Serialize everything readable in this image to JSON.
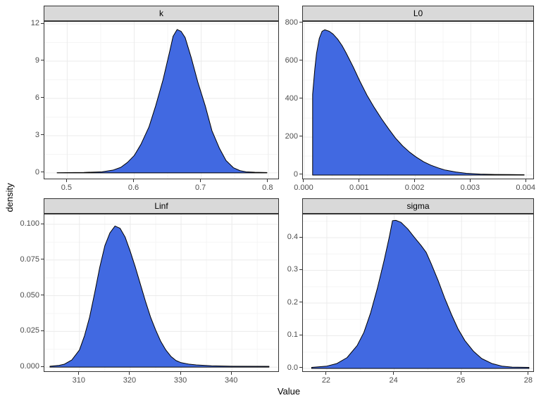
{
  "style": {
    "fill_color": "#4169E1",
    "line_color": "#000000",
    "panel_border": "#333333",
    "grid_major": "#EBEBEB",
    "grid_minor": "#F5F5F5",
    "strip_background": "#D9D9D9",
    "strip_text_color": "#000000",
    "tick_label_color": "#4D4D4D",
    "axis_title_color": "#000000"
  },
  "chart_data": {
    "type": "area",
    "subtype": "faceted-density",
    "title": "",
    "xlabel": "Value",
    "ylabel": "density",
    "grid": true,
    "legend": false,
    "facets": [
      {
        "name": "k",
        "xlim": [
          0.466,
          0.817
        ],
        "ylim": [
          -0.57,
          12.17
        ],
        "xticks": {
          "values": [
            0.5,
            0.6,
            0.7,
            0.8
          ],
          "labels": [
            "0.5",
            "0.6",
            "0.7",
            "0.8"
          ]
        },
        "yticks": {
          "values": [
            0,
            3,
            6,
            9,
            12
          ],
          "labels": [
            "0",
            "3",
            "6",
            "9",
            "12"
          ]
        },
        "curve": [
          [
            0.485,
            0.02
          ],
          [
            0.525,
            0.04
          ],
          [
            0.552,
            0.09
          ],
          [
            0.568,
            0.22
          ],
          [
            0.58,
            0.45
          ],
          [
            0.59,
            0.85
          ],
          [
            0.6,
            1.4
          ],
          [
            0.61,
            2.3
          ],
          [
            0.622,
            3.7
          ],
          [
            0.632,
            5.4
          ],
          [
            0.643,
            7.5
          ],
          [
            0.653,
            9.8
          ],
          [
            0.658,
            11.0
          ],
          [
            0.664,
            11.55
          ],
          [
            0.67,
            11.4
          ],
          [
            0.676,
            10.9
          ],
          [
            0.685,
            9.3
          ],
          [
            0.695,
            7.3
          ],
          [
            0.706,
            5.4
          ],
          [
            0.716,
            3.4
          ],
          [
            0.727,
            2.0
          ],
          [
            0.737,
            1.0
          ],
          [
            0.748,
            0.42
          ],
          [
            0.758,
            0.18
          ],
          [
            0.767,
            0.09
          ],
          [
            0.78,
            0.05
          ],
          [
            0.798,
            0.03
          ]
        ]
      },
      {
        "name": "L0",
        "xlim": [
          -2.5e-05,
          0.00415
        ],
        "ylim": [
          -26,
          807
        ],
        "xticks": {
          "values": [
            0,
            0.001,
            0.002,
            0.003,
            0.004
          ],
          "labels": [
            "0.000",
            "0.001",
            "0.002",
            "0.003",
            "0.004"
          ]
        },
        "yticks": {
          "values": [
            0,
            200,
            400,
            600,
            800
          ],
          "labels": [
            "0",
            "200",
            "400",
            "600",
            "800"
          ]
        },
        "curve": [
          [
            0.00015,
            0
          ],
          [
            0.00015,
            425
          ],
          [
            0.00019,
            560
          ],
          [
            0.00022,
            640
          ],
          [
            0.00027,
            720
          ],
          [
            0.00032,
            757
          ],
          [
            0.00037,
            765
          ],
          [
            0.00045,
            757
          ],
          [
            0.00052,
            742
          ],
          [
            0.0006,
            716
          ],
          [
            0.00068,
            682
          ],
          [
            0.00075,
            645
          ],
          [
            0.00088,
            570
          ],
          [
            0.001,
            495
          ],
          [
            0.00113,
            420
          ],
          [
            0.00126,
            356
          ],
          [
            0.00139,
            297
          ],
          [
            0.00152,
            243
          ],
          [
            0.00164,
            196
          ],
          [
            0.00177,
            154
          ],
          [
            0.0019,
            120
          ],
          [
            0.00201,
            96
          ],
          [
            0.00215,
            70
          ],
          [
            0.00228,
            52
          ],
          [
            0.00241,
            38
          ],
          [
            0.00253,
            27
          ],
          [
            0.00273,
            16
          ],
          [
            0.00292,
            9
          ],
          [
            0.00317,
            5
          ],
          [
            0.00343,
            3
          ],
          [
            0.0037,
            2.5
          ],
          [
            0.00396,
            2
          ]
        ]
      },
      {
        "name": "Linf",
        "xlim": [
          303.1,
          349.4
        ],
        "ylim": [
          -0.0039,
          0.1069
        ],
        "xticks": {
          "values": [
            310,
            320,
            330,
            340
          ],
          "labels": [
            "310",
            "320",
            "330",
            "340"
          ]
        },
        "yticks": {
          "values": [
            0,
            0.025,
            0.05,
            0.075,
            0.1
          ],
          "labels": [
            "0.000",
            "0.025",
            "0.050",
            "0.075",
            "0.100"
          ]
        },
        "curve": [
          [
            304.2,
            0.0006
          ],
          [
            306,
            0.0012
          ],
          [
            307,
            0.002
          ],
          [
            308.5,
            0.005
          ],
          [
            310,
            0.012
          ],
          [
            311,
            0.022
          ],
          [
            312,
            0.035
          ],
          [
            313,
            0.052
          ],
          [
            314,
            0.07
          ],
          [
            315,
            0.085
          ],
          [
            316,
            0.094
          ],
          [
            317,
            0.0988
          ],
          [
            318,
            0.0972
          ],
          [
            319,
            0.091
          ],
          [
            320,
            0.081
          ],
          [
            321,
            0.07
          ],
          [
            322,
            0.058
          ],
          [
            323,
            0.046
          ],
          [
            324,
            0.035
          ],
          [
            325,
            0.026
          ],
          [
            326,
            0.018
          ],
          [
            327,
            0.012
          ],
          [
            328,
            0.0075
          ],
          [
            329,
            0.0046
          ],
          [
            330,
            0.0031
          ],
          [
            331.5,
            0.0021
          ],
          [
            333,
            0.0015
          ],
          [
            336,
            0.0009
          ],
          [
            340,
            0.0006
          ],
          [
            347.3,
            0.0005
          ]
        ]
      },
      {
        "name": "sigma",
        "xlim": [
          21.29,
          28.17
        ],
        "ylim": [
          -0.013,
          0.471
        ],
        "xticks": {
          "values": [
            22,
            24,
            26,
            28
          ],
          "labels": [
            "22",
            "24",
            "26",
            "28"
          ]
        },
        "yticks": {
          "values": [
            0,
            0.1,
            0.2,
            0.3,
            0.4
          ],
          "labels": [
            "0.0",
            "0.1",
            "0.2",
            "0.3",
            "0.4"
          ]
        },
        "curve": [
          [
            21.55,
            0.003
          ],
          [
            22.0,
            0.007
          ],
          [
            22.3,
            0.015
          ],
          [
            22.6,
            0.033
          ],
          [
            22.9,
            0.07
          ],
          [
            23.1,
            0.11
          ],
          [
            23.3,
            0.17
          ],
          [
            23.5,
            0.245
          ],
          [
            23.7,
            0.33
          ],
          [
            23.85,
            0.4
          ],
          [
            23.95,
            0.452
          ],
          [
            24.05,
            0.453
          ],
          [
            24.2,
            0.447
          ],
          [
            24.4,
            0.427
          ],
          [
            24.6,
            0.401
          ],
          [
            24.8,
            0.376
          ],
          [
            24.95,
            0.355
          ],
          [
            25.1,
            0.32
          ],
          [
            25.3,
            0.27
          ],
          [
            25.5,
            0.215
          ],
          [
            25.7,
            0.165
          ],
          [
            25.9,
            0.12
          ],
          [
            26.1,
            0.085
          ],
          [
            26.35,
            0.053
          ],
          [
            26.6,
            0.03
          ],
          [
            26.9,
            0.015
          ],
          [
            27.2,
            0.007
          ],
          [
            27.5,
            0.004
          ],
          [
            28.0,
            0.003
          ]
        ]
      }
    ]
  }
}
